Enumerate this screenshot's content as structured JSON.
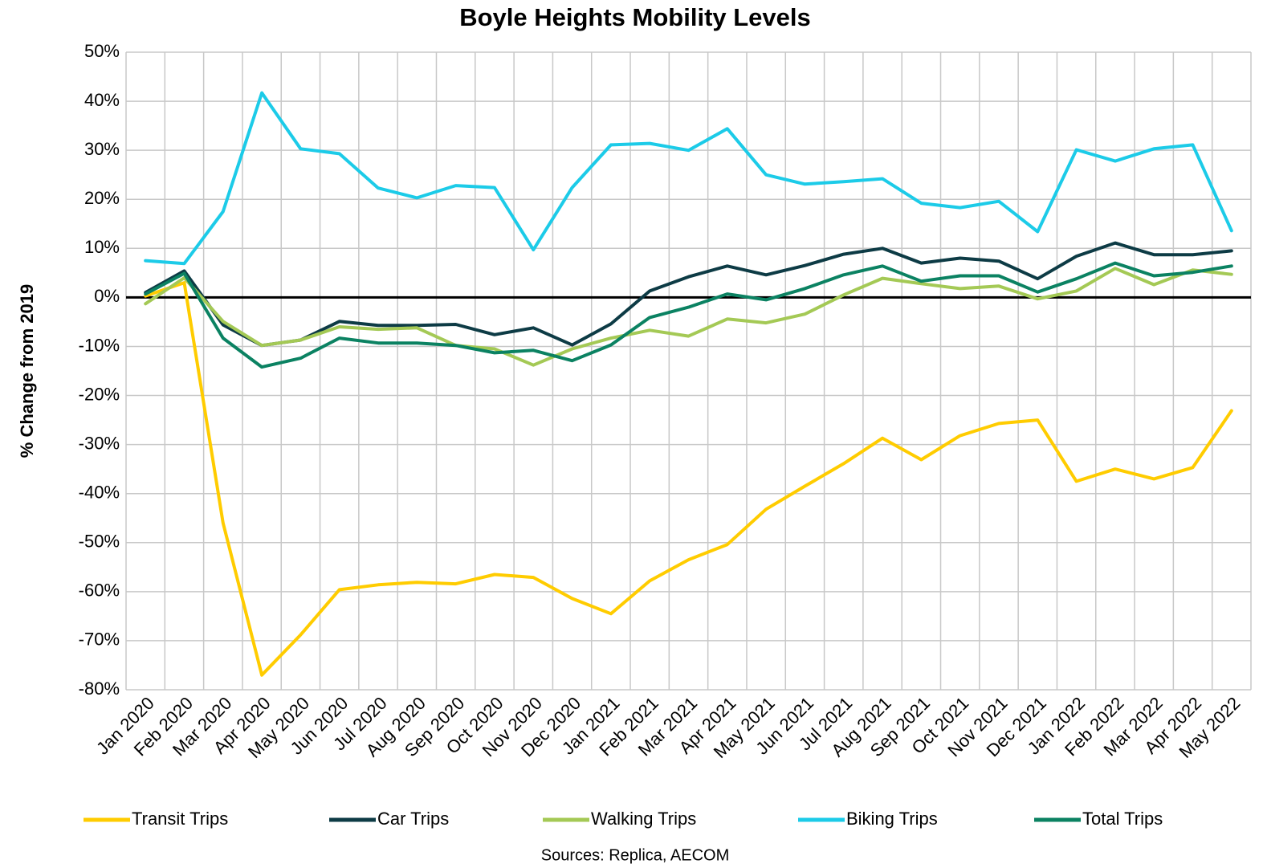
{
  "chart_data": {
    "type": "line",
    "title": "Boyle Heights Mobility Levels",
    "y_label": "% Change from 2019",
    "source": "Sources: Replica, AECOM",
    "categories": [
      "Jan 2020",
      "Feb 2020",
      "Mar 2020",
      "Apr 2020",
      "May 2020",
      "Jun 2020",
      "Jul 2020",
      "Aug 2020",
      "Sep 2020",
      "Oct 2020",
      "Nov 2020",
      "Dec 2020",
      "Jan 2021",
      "Feb 2021",
      "Mar 2021",
      "Apr 2021",
      "May 2021",
      "Jun 2021",
      "Jul 2021",
      "Aug 2021",
      "Sep 2021",
      "Oct 2021",
      "Nov 2021",
      "Dec 2021",
      "Jan 2022",
      "Feb 2022",
      "Mar 2022",
      "Apr 2022",
      "May 2022"
    ],
    "series": [
      {
        "name": "Transit Trips",
        "color": "#ffcc00",
        "values": [
          0.3,
          3,
          -46,
          -77,
          -68.8,
          -59.6,
          -58.6,
          -58.1,
          -58.4,
          -56.5,
          -57.1,
          -61.4,
          -64.5,
          -57.8,
          -53.5,
          -50.4,
          -43.2,
          -38.5,
          -33.9,
          -28.7,
          -33.1,
          -28.2,
          -25.7,
          -25,
          -37.5,
          -35,
          -37,
          -34.7,
          -23.1
        ]
      },
      {
        "name": "Car Trips",
        "color": "#0d3b45",
        "values": [
          1,
          5.4,
          -5.6,
          -9.8,
          -8.7,
          -4.9,
          -5.7,
          -5.7,
          -5.5,
          -7.6,
          -6.2,
          -9.7,
          -5.4,
          1.3,
          4.2,
          6.4,
          4.6,
          6.5,
          8.8,
          10,
          7,
          8,
          7.4,
          3.8,
          8.4,
          11.1,
          8.7,
          8.7,
          9.5
        ]
      },
      {
        "name": "Walking Trips",
        "color": "#a4c955",
        "values": [
          -1.3,
          4,
          -4.9,
          -9.8,
          -8.7,
          -6,
          -6.5,
          -6.2,
          -9.8,
          -10.5,
          -13.8,
          -10.5,
          -8.3,
          -6.7,
          -7.9,
          -4.4,
          -5.2,
          -3.4,
          0.5,
          3.9,
          2.8,
          1.8,
          2.3,
          -0.3,
          1.3,
          5.9,
          2.6,
          5.6,
          4.7
        ]
      },
      {
        "name": "Biking Trips",
        "color": "#1ccbe8",
        "values": [
          7.5,
          6.9,
          17.5,
          41.7,
          30.3,
          29.3,
          22.3,
          20.3,
          22.8,
          22.4,
          9.7,
          22.4,
          31.1,
          31.4,
          30,
          34.4,
          25,
          23.1,
          23.6,
          24.2,
          19.2,
          18.3,
          19.6,
          13.4,
          30.1,
          27.8,
          30.3,
          31.1,
          13.6
        ]
      },
      {
        "name": "Total Trips",
        "color": "#0b8262",
        "values": [
          0.7,
          4.9,
          -8.3,
          -14.2,
          -12.4,
          -8.3,
          -9.3,
          -9.3,
          -9.8,
          -11.3,
          -10.8,
          -12.9,
          -9.7,
          -4.1,
          -2,
          0.7,
          -0.5,
          1.8,
          4.6,
          6.4,
          3.3,
          4.4,
          4.4,
          1.1,
          3.8,
          7,
          4.4,
          5.1,
          6.4
        ]
      }
    ],
    "ylim": [
      -80,
      50
    ],
    "yticks": [
      {
        "value": -80,
        "label": "-80%"
      },
      {
        "value": -70,
        "label": "-70%"
      },
      {
        "value": -60,
        "label": "-60%"
      },
      {
        "value": -50,
        "label": "-50%"
      },
      {
        "value": -40,
        "label": "-40%"
      },
      {
        "value": -30,
        "label": "-30%"
      },
      {
        "value": -20,
        "label": "-20%"
      },
      {
        "value": -10,
        "label": "-10%"
      },
      {
        "value": 0,
        "label": "0%"
      },
      {
        "value": 10,
        "label": "10%"
      },
      {
        "value": 20,
        "label": "20%"
      },
      {
        "value": 30,
        "label": "30%"
      },
      {
        "value": 40,
        "label": "40%"
      },
      {
        "value": 50,
        "label": "50%"
      }
    ],
    "grid": true,
    "legend": "bottom"
  }
}
